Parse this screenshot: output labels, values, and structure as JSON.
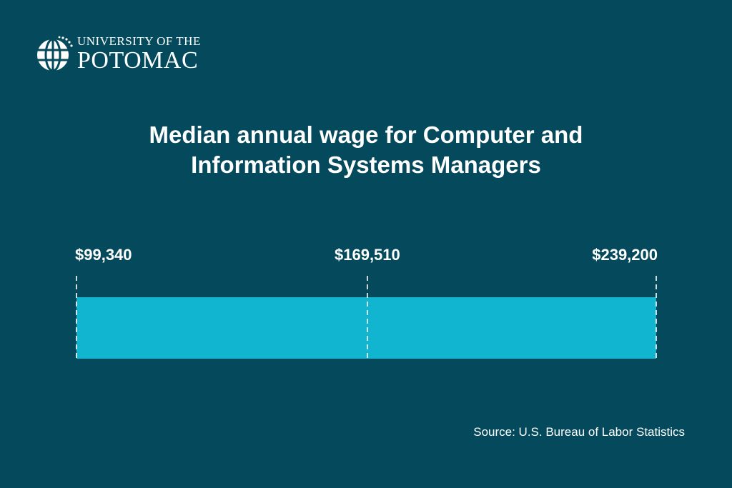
{
  "logo": {
    "line1": "UNIVERSITY OF THE",
    "line2": "POTOMAC",
    "icon": "globe-icon"
  },
  "title": {
    "line1": "Median annual wage for Computer and",
    "line2": "Information Systems Managers"
  },
  "chart_data": {
    "type": "bar",
    "orientation": "horizontal-range",
    "title": "Median annual wage for Computer and Information Systems Managers",
    "min": 99340,
    "median": 169510,
    "max": 239200,
    "labels": [
      "$99,340",
      "$169,510",
      "$239,200"
    ],
    "bar_color": "#12b5cf",
    "marker_color": "#ffffff",
    "background": "#044a5c"
  },
  "source": "Source: U.S. Bureau of Labor Statistics"
}
